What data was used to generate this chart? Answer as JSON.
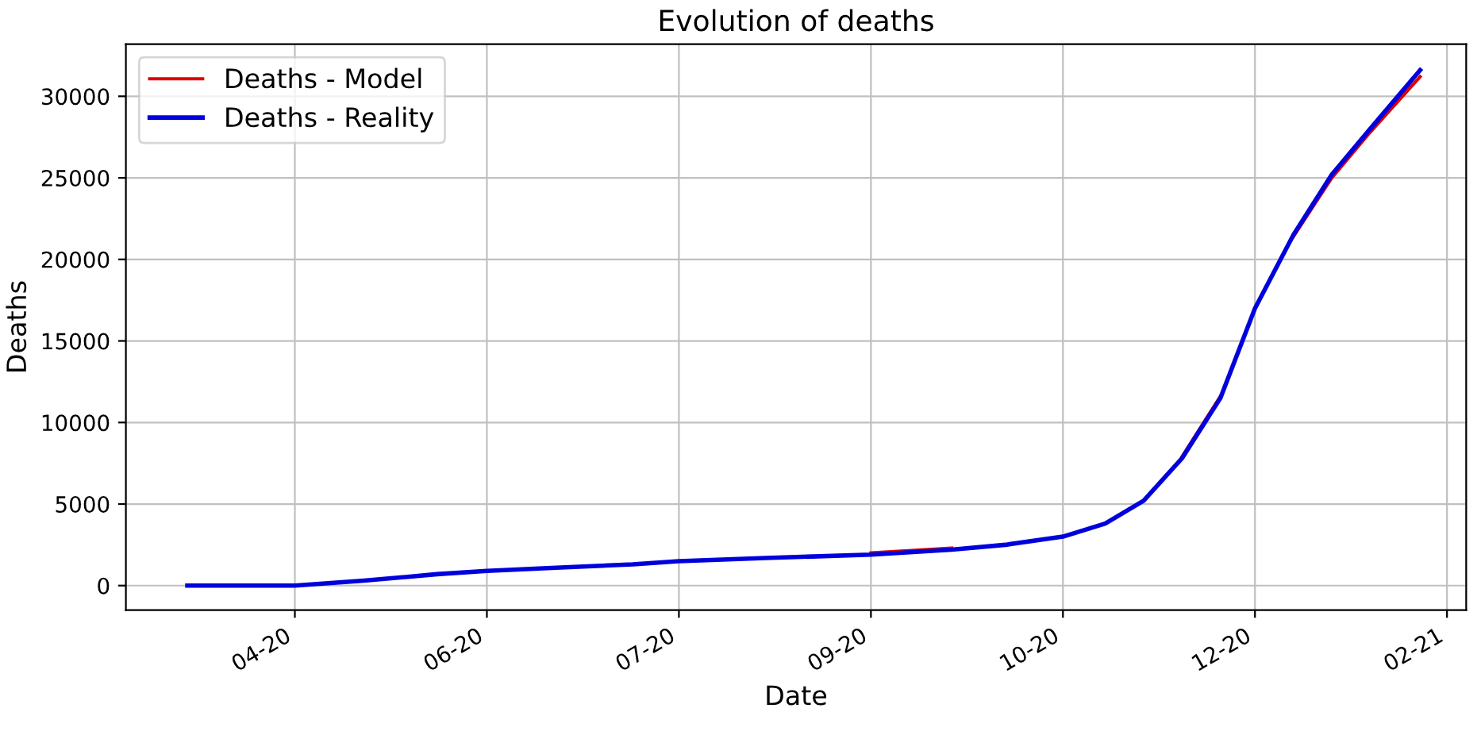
{
  "chart_data": {
    "type": "line",
    "title": "Evolution of deaths",
    "xlabel": "Date",
    "ylabel": "Deaths",
    "xlim": [
      "2020-02-29",
      "2021-02-12"
    ],
    "xticks": [
      {
        "value": "2020-04-13",
        "label": "04-20"
      },
      {
        "value": "2020-06-02",
        "label": "06-20"
      },
      {
        "value": "2020-07-22",
        "label": "07-20"
      },
      {
        "value": "2020-09-10",
        "label": "09-20"
      },
      {
        "value": "2020-10-30",
        "label": "10-20"
      },
      {
        "value": "2020-12-19",
        "label": "12-20"
      },
      {
        "value": "2021-02-07",
        "label": "02-21"
      }
    ],
    "ylim": [
      -1500,
      33200
    ],
    "yticks": [
      0,
      5000,
      10000,
      15000,
      20000,
      25000,
      30000
    ],
    "grid": true,
    "legend": "top left",
    "x": [
      "2020-03-16",
      "2020-04-13",
      "2020-05-01",
      "2020-05-20",
      "2020-06-02",
      "2020-06-20",
      "2020-07-10",
      "2020-07-22",
      "2020-08-15",
      "2020-09-10",
      "2020-10-01",
      "2020-10-15",
      "2020-10-30",
      "2020-11-10",
      "2020-11-20",
      "2020-11-30",
      "2020-12-10",
      "2020-12-19",
      "2020-12-29",
      "2021-01-08",
      "2021-01-18",
      "2021-01-31"
    ],
    "series": [
      {
        "name": "Deaths - Model",
        "color": "#e00000",
        "values": [
          null,
          null,
          null,
          null,
          null,
          null,
          null,
          null,
          null,
          2000,
          2300,
          null,
          null,
          null,
          null,
          7900,
          11600,
          null,
          21400,
          25000,
          27800,
          31200
        ]
      },
      {
        "name": "Deaths - Reality",
        "color": "#0000dd",
        "values": [
          0,
          0,
          300,
          700,
          900,
          1100,
          1300,
          1500,
          1700,
          1900,
          2200,
          2500,
          3000,
          3800,
          5200,
          7800,
          11500,
          17000,
          21500,
          25200,
          28000,
          31600
        ]
      }
    ]
  }
}
